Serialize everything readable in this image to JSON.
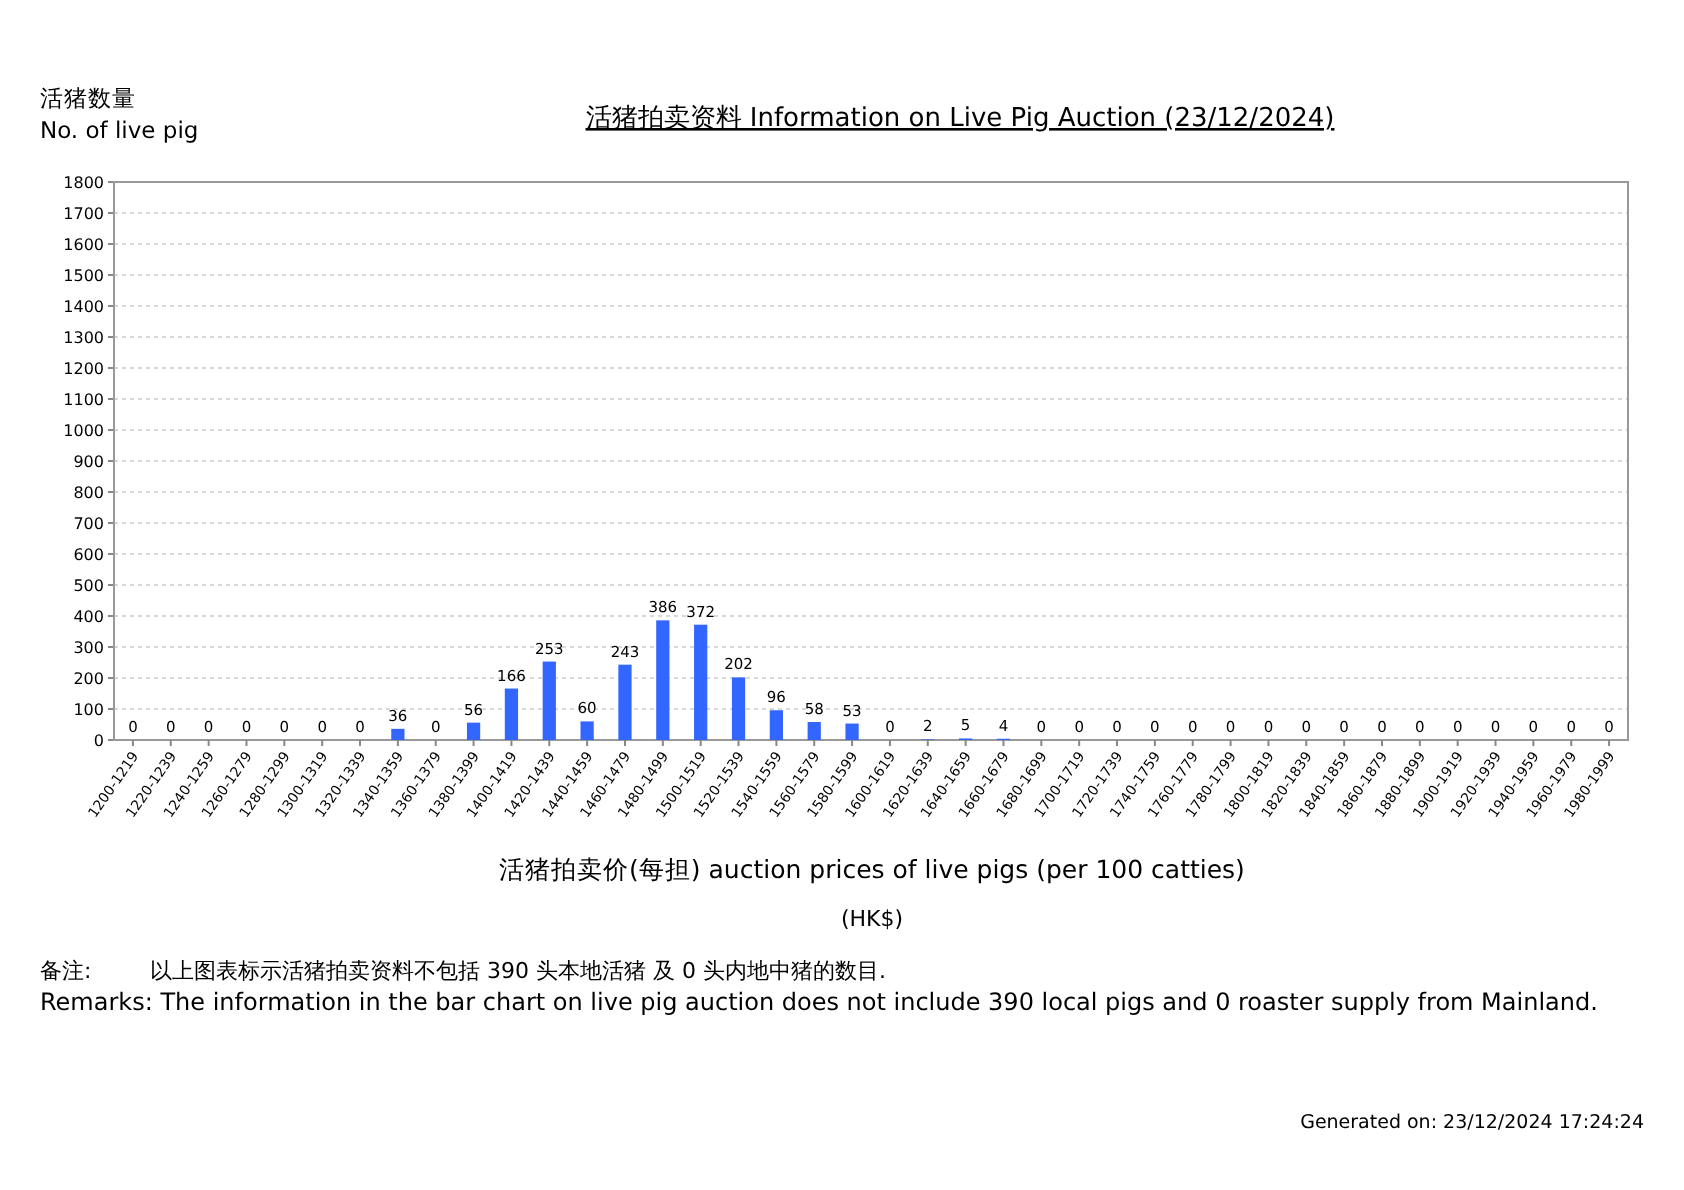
{
  "chart_data": {
    "type": "bar",
    "title": "活猪拍卖资料 Information on Live Pig Auction (23/12/2024)",
    "ylabel": "活猪数量\nNo. of live pig",
    "xlabel": "活猪拍卖价(每担) auction prices of live pigs (per 100 catties)\n(HK$)",
    "categories": [
      "1200-1219",
      "1220-1239",
      "1240-1259",
      "1260-1279",
      "1280-1299",
      "1300-1319",
      "1320-1339",
      "1340-1359",
      "1360-1379",
      "1380-1399",
      "1400-1419",
      "1420-1439",
      "1440-1459",
      "1460-1479",
      "1480-1499",
      "1500-1519",
      "1520-1539",
      "1540-1559",
      "1560-1579",
      "1580-1599",
      "1600-1619",
      "1620-1639",
      "1640-1659",
      "1660-1679",
      "1680-1699",
      "1700-1719",
      "1720-1739",
      "1740-1759",
      "1760-1779",
      "1780-1799",
      "1800-1819",
      "1820-1839",
      "1840-1859",
      "1860-1879",
      "1880-1899",
      "1900-1919",
      "1920-1939",
      "1940-1959",
      "1960-1979",
      "1980-1999"
    ],
    "values": [
      0,
      0,
      0,
      0,
      0,
      0,
      0,
      36,
      0,
      56,
      166,
      253,
      60,
      243,
      386,
      372,
      202,
      96,
      58,
      53,
      0,
      2,
      5,
      4,
      0,
      0,
      0,
      0,
      0,
      0,
      0,
      0,
      0,
      0,
      0,
      0,
      0,
      0,
      0,
      0
    ],
    "color": "#3366ff",
    "data_labels": true,
    "ylim": [
      0,
      1800
    ],
    "yticks": [
      0,
      100,
      200,
      300,
      400,
      500,
      600,
      700,
      800,
      900,
      1000,
      1100,
      1200,
      1300,
      1400,
      1500,
      1600,
      1700,
      1800
    ],
    "grid": "y",
    "annotations": [
      "备注:",
      "以上图表标示活猪拍卖资料不包括 390 头本地活猪 及 0 头内地中猪的数目.",
      "Remarks: The information in the bar chart on live pig auction does not include 390 local pigs and 0 roaster supply from Mainland.",
      "Generated on: 23/12/2024 17:24:24"
    ]
  }
}
